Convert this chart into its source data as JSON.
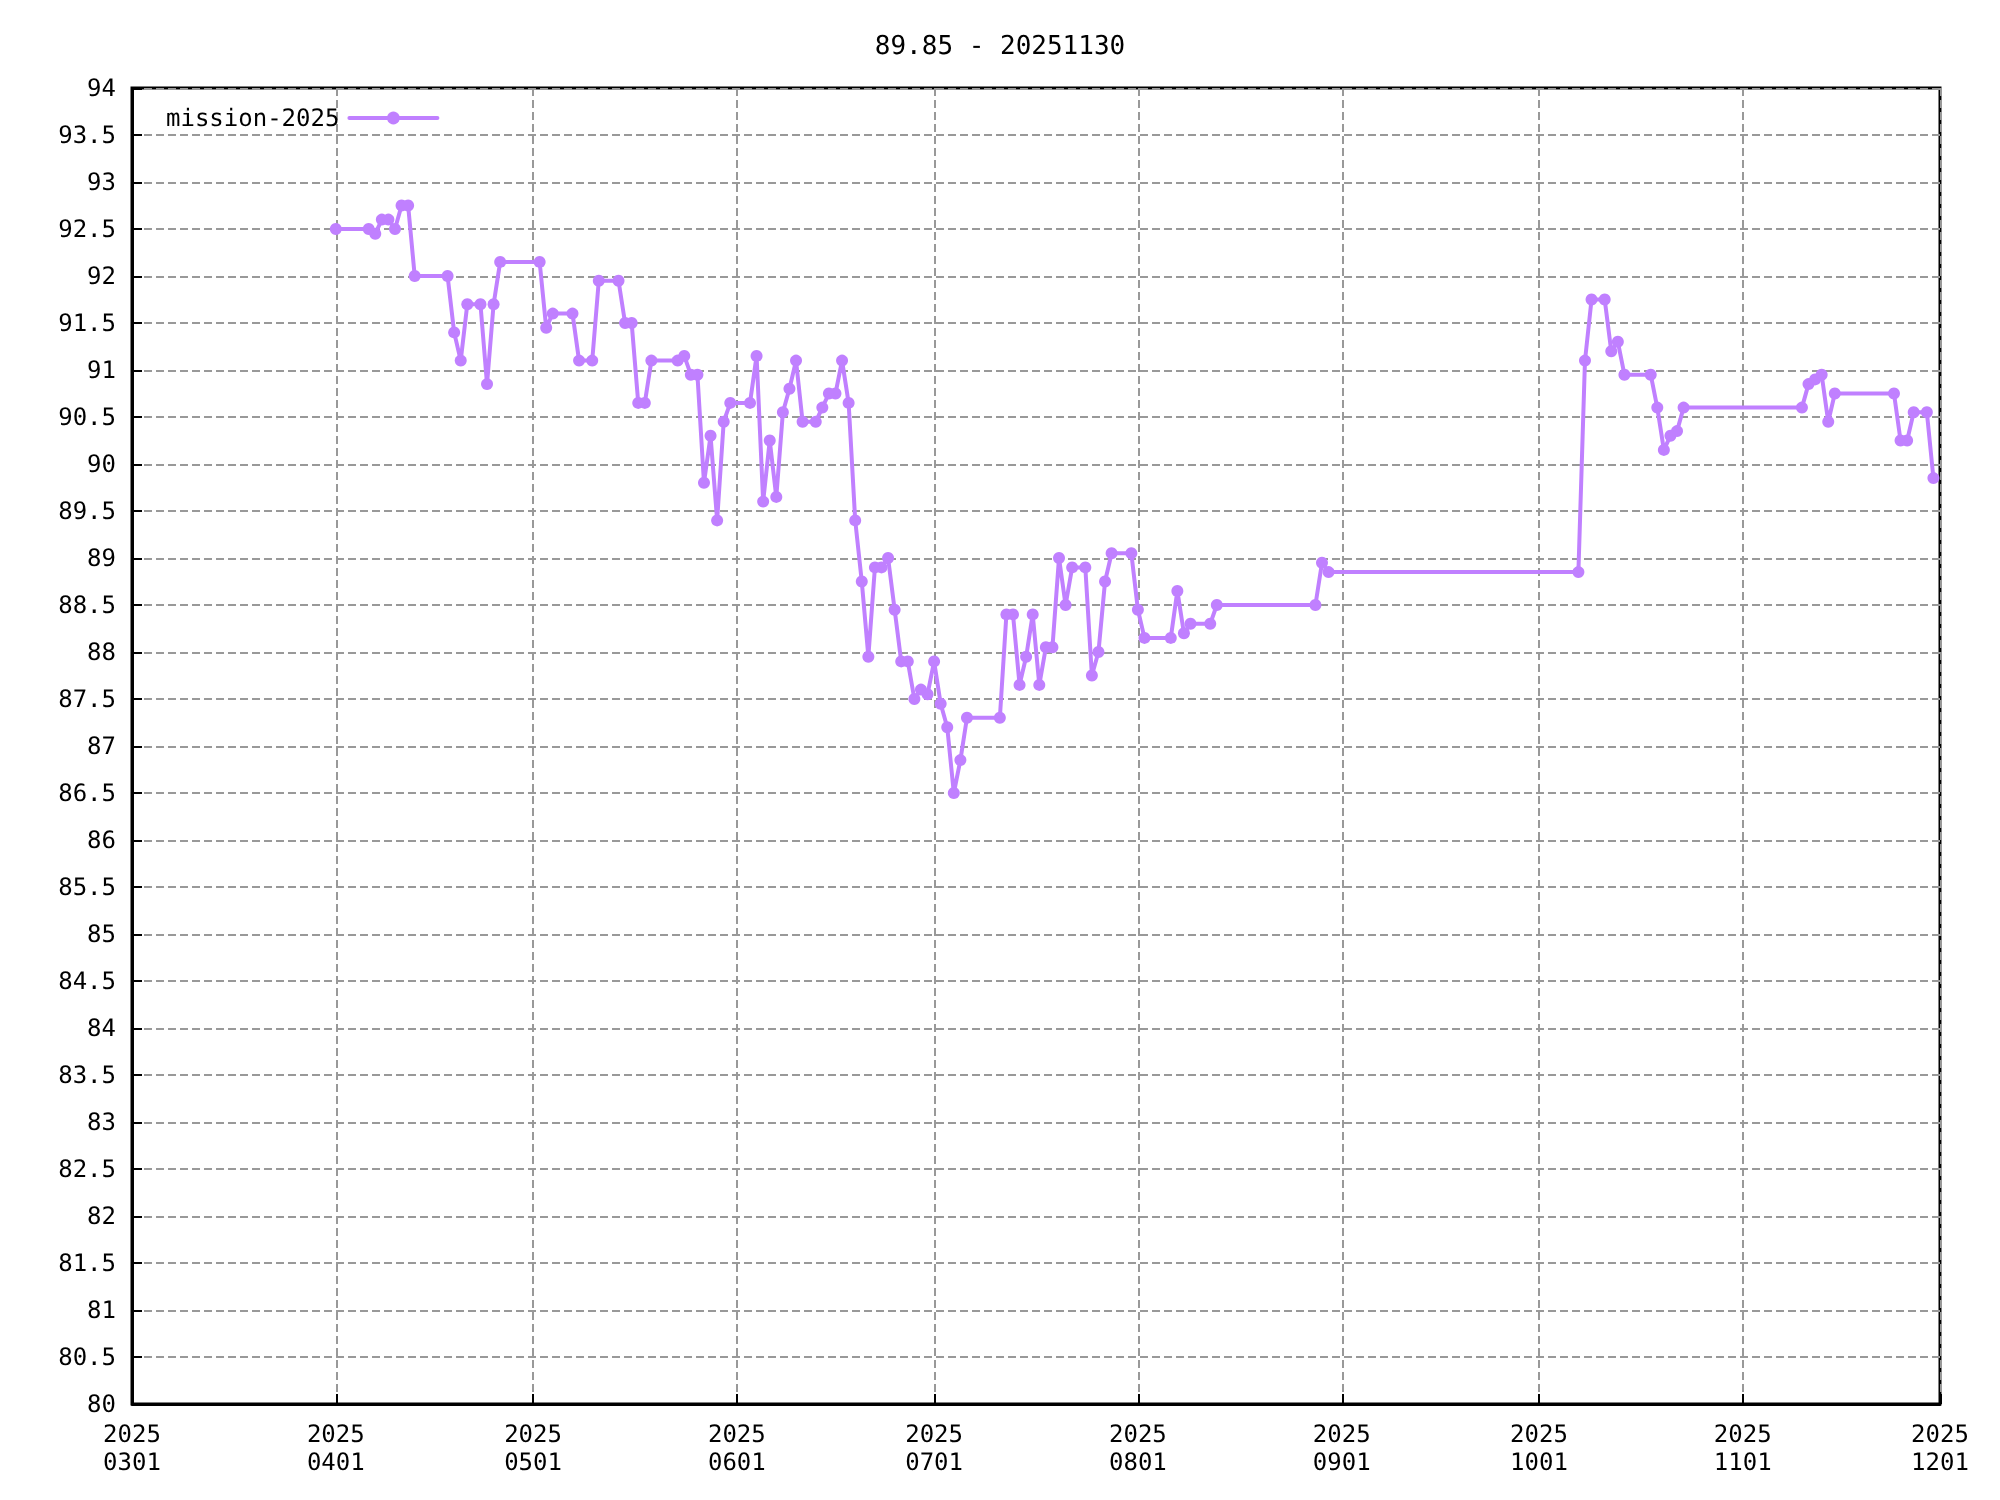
{
  "chart_data": {
    "type": "line",
    "title": "89.85 - 20251130",
    "x": [
      "2025-04-01",
      "2025-04-06",
      "2025-04-07",
      "2025-04-08",
      "2025-04-09",
      "2025-04-10",
      "2025-04-11",
      "2025-04-12",
      "2025-04-13",
      "2025-04-18",
      "2025-04-19",
      "2025-04-20",
      "2025-04-21",
      "2025-04-23",
      "2025-04-24",
      "2025-04-25",
      "2025-04-26",
      "2025-05-02",
      "2025-05-03",
      "2025-05-04",
      "2025-05-07",
      "2025-05-08",
      "2025-05-10",
      "2025-05-11",
      "2025-05-14",
      "2025-05-15",
      "2025-05-16",
      "2025-05-17",
      "2025-05-18",
      "2025-05-19",
      "2025-05-23",
      "2025-05-24",
      "2025-05-25",
      "2025-05-26",
      "2025-05-27",
      "2025-05-28",
      "2025-05-29",
      "2025-05-30",
      "2025-05-31",
      "2025-06-03",
      "2025-06-04",
      "2025-06-05",
      "2025-06-06",
      "2025-06-07",
      "2025-06-08",
      "2025-06-09",
      "2025-06-10",
      "2025-06-11",
      "2025-06-13",
      "2025-06-14",
      "2025-06-15",
      "2025-06-16",
      "2025-06-17",
      "2025-06-18",
      "2025-06-19",
      "2025-06-20",
      "2025-06-21",
      "2025-06-22",
      "2025-06-23",
      "2025-06-24",
      "2025-06-25",
      "2025-06-26",
      "2025-06-27",
      "2025-06-28",
      "2025-06-29",
      "2025-06-30",
      "2025-07-01",
      "2025-07-02",
      "2025-07-03",
      "2025-07-04",
      "2025-07-05",
      "2025-07-06",
      "2025-07-11",
      "2025-07-12",
      "2025-07-13",
      "2025-07-14",
      "2025-07-15",
      "2025-07-16",
      "2025-07-17",
      "2025-07-18",
      "2025-07-19",
      "2025-07-20",
      "2025-07-21",
      "2025-07-22",
      "2025-07-24",
      "2025-07-25",
      "2025-07-26",
      "2025-07-27",
      "2025-07-28",
      "2025-07-31",
      "2025-08-01",
      "2025-08-02",
      "2025-08-06",
      "2025-08-07",
      "2025-08-08",
      "2025-08-09",
      "2025-08-12",
      "2025-08-13",
      "2025-08-28",
      "2025-08-29",
      "2025-08-30",
      "2025-10-07",
      "2025-10-08",
      "2025-10-09",
      "2025-10-11",
      "2025-10-12",
      "2025-10-13",
      "2025-10-14",
      "2025-10-18",
      "2025-10-19",
      "2025-10-20",
      "2025-10-21",
      "2025-10-22",
      "2025-10-23",
      "2025-11-10",
      "2025-11-11",
      "2025-11-12",
      "2025-11-13",
      "2025-11-14",
      "2025-11-15",
      "2025-11-24",
      "2025-11-25",
      "2025-11-26",
      "2025-11-27",
      "2025-11-29",
      "2025-11-30"
    ],
    "series": [
      {
        "name": "mission-2025",
        "color": "#c080ff",
        "values": [
          92.5,
          92.5,
          92.45,
          92.6,
          92.6,
          92.5,
          92.75,
          92.75,
          92.0,
          92.0,
          91.4,
          91.1,
          91.7,
          91.7,
          90.85,
          91.7,
          92.15,
          92.15,
          91.45,
          91.6,
          91.6,
          91.1,
          91.1,
          91.95,
          91.95,
          91.5,
          91.5,
          90.65,
          90.65,
          91.1,
          91.1,
          91.15,
          90.95,
          90.95,
          89.8,
          90.3,
          89.4,
          90.45,
          90.65,
          90.65,
          91.15,
          89.6,
          90.25,
          89.65,
          90.55,
          90.8,
          91.1,
          90.45,
          90.45,
          90.6,
          90.75,
          90.75,
          91.1,
          90.65,
          89.4,
          88.75,
          87.95,
          88.9,
          88.9,
          89.0,
          88.45,
          87.9,
          87.9,
          87.5,
          87.6,
          87.55,
          87.9,
          87.45,
          87.2,
          86.5,
          86.85,
          87.3,
          87.3,
          88.4,
          88.4,
          87.65,
          87.95,
          88.4,
          87.65,
          88.05,
          88.05,
          89.0,
          88.5,
          88.9,
          88.9,
          87.75,
          88.0,
          88.75,
          89.05,
          89.05,
          88.45,
          88.15,
          88.15,
          88.65,
          88.2,
          88.3,
          88.3,
          88.5,
          88.5,
          88.95,
          88.85,
          88.85,
          91.1,
          91.75,
          91.75,
          91.2,
          91.3,
          90.95,
          90.95,
          90.6,
          90.15,
          90.3,
          90.35,
          90.6,
          90.6,
          90.85,
          90.9,
          90.95,
          90.45,
          90.75,
          90.75,
          90.25,
          90.25,
          90.55,
          90.55,
          89.85
        ]
      }
    ],
    "xlim": [
      "2025-03-01",
      "2025-12-01"
    ],
    "xticks": [
      {
        "value": "2025-03-01",
        "label": "2025\n0301"
      },
      {
        "value": "2025-04-01",
        "label": "2025\n0401"
      },
      {
        "value": "2025-05-01",
        "label": "2025\n0501"
      },
      {
        "value": "2025-06-01",
        "label": "2025\n0601"
      },
      {
        "value": "2025-07-01",
        "label": "2025\n0701"
      },
      {
        "value": "2025-08-01",
        "label": "2025\n0801"
      },
      {
        "value": "2025-09-01",
        "label": "2025\n0901"
      },
      {
        "value": "2025-10-01",
        "label": "2025\n1001"
      },
      {
        "value": "2025-11-01",
        "label": "2025\n1101"
      },
      {
        "value": "2025-12-01",
        "label": "2025\n1201"
      }
    ],
    "ylim": [
      80,
      94
    ],
    "yticks": [
      80,
      80.5,
      81,
      81.5,
      82,
      82.5,
      83,
      83.5,
      84,
      84.5,
      85,
      85.5,
      86,
      86.5,
      87,
      87.5,
      88,
      88.5,
      89,
      89.5,
      90,
      90.5,
      91,
      91.5,
      92,
      92.5,
      93,
      93.5,
      94
    ],
    "grid": true,
    "legend": "top left",
    "marker": "circle",
    "line_style": "solid"
  }
}
